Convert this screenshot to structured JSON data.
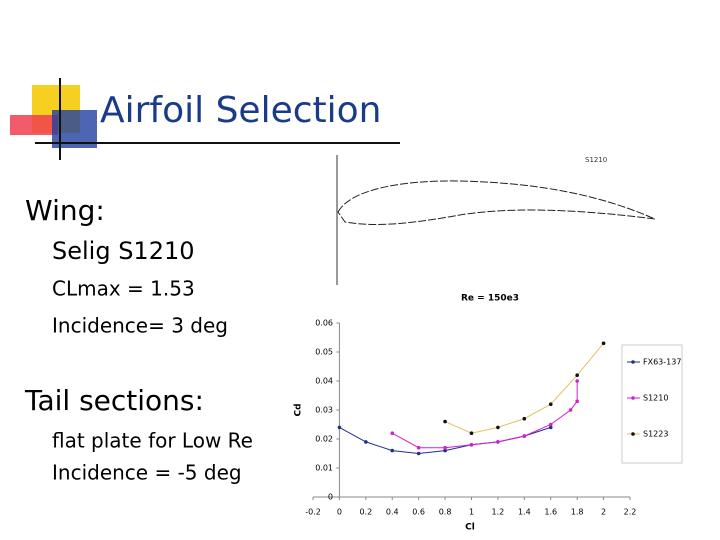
{
  "slide": {
    "title": "Airfoil Selection",
    "bullets": [
      {
        "text": "Wing:",
        "level": 1
      },
      {
        "text": "Selig S1210",
        "level": 2
      },
      {
        "text": "CLmax = 1.53",
        "level": 3
      },
      {
        "text": "Incidence= 3 deg",
        "level": 3
      },
      {
        "text": "Tail sections:",
        "level": 1
      },
      {
        "text": "flat plate for Low Re",
        "level": 3
      },
      {
        "text": "Incidence = -5 deg",
        "level": 3
      }
    ],
    "airfoil_label": "S1210"
  },
  "chart_data": {
    "type": "line",
    "title": "Re = 150e3",
    "x_label": "Cl",
    "y_label": "Cd",
    "xlim": [
      -0.2,
      2.2
    ],
    "xticks": [
      -0.2,
      0,
      0.2,
      0.4,
      0.6,
      0.8,
      1,
      1.2,
      1.4,
      1.6,
      1.8,
      2,
      2.2
    ],
    "ylim": [
      0,
      0.06
    ],
    "yticks": [
      0,
      0.01,
      0.02,
      0.03,
      0.04,
      0.05,
      0.06
    ],
    "series": [
      {
        "name": "FX63-137",
        "color": "#1f2f8f",
        "x": [
          0,
          0.2,
          0.4,
          0.6,
          0.8,
          1.0,
          1.2,
          1.4,
          1.6
        ],
        "values": [
          0.024,
          0.019,
          0.016,
          0.015,
          0.016,
          0.018,
          0.019,
          0.021,
          0.024
        ]
      },
      {
        "name": "S1210",
        "color": "#d020d0",
        "x": [
          0.4,
          0.6,
          0.8,
          1.0,
          1.2,
          1.4,
          1.6,
          1.75,
          1.8,
          1.8
        ],
        "values": [
          0.022,
          0.017,
          0.017,
          0.018,
          0.019,
          0.021,
          0.025,
          0.03,
          0.033,
          0.04
        ]
      },
      {
        "name": "S1223",
        "color": "#e0c060",
        "x": [
          0.8,
          1.0,
          1.2,
          1.4,
          1.6,
          1.8,
          2.0
        ],
        "values": [
          0.026,
          0.022,
          0.024,
          0.027,
          0.032,
          0.042,
          0.053
        ]
      }
    ]
  }
}
